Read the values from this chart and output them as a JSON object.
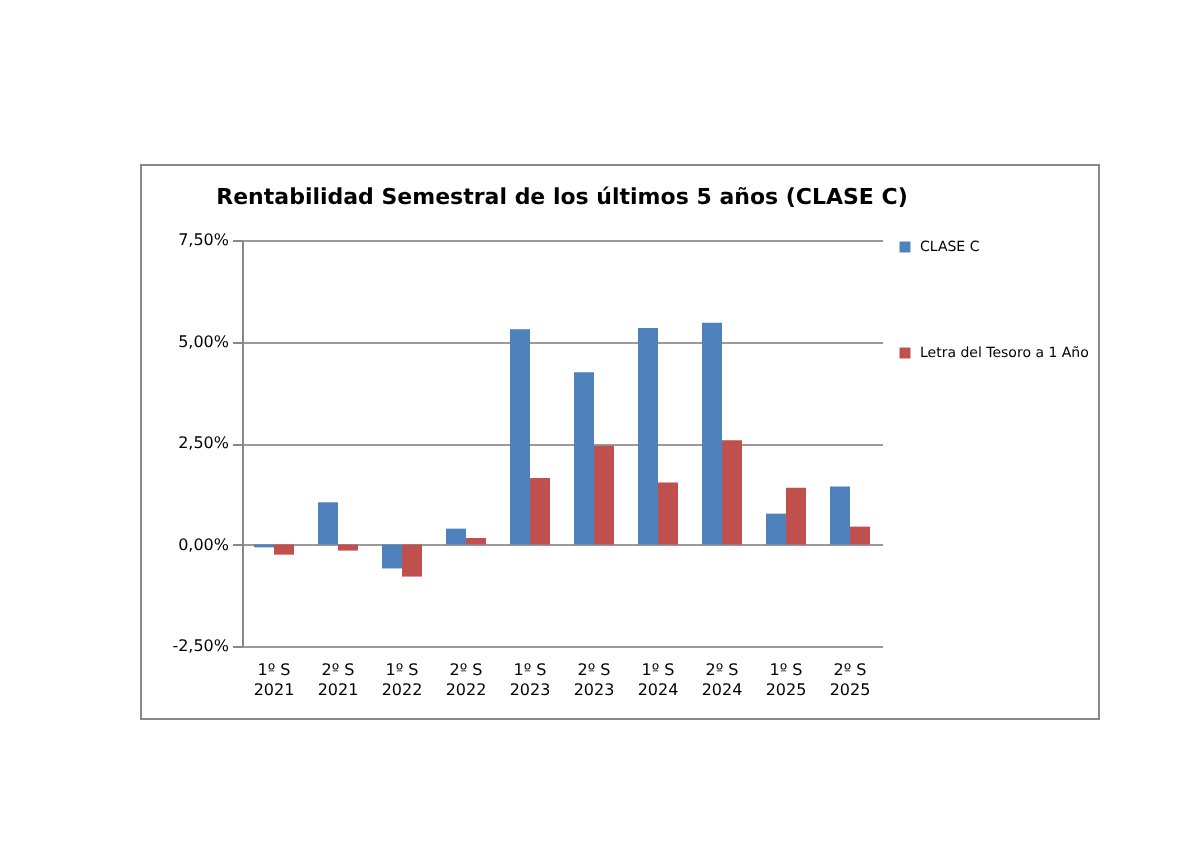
{
  "chart_data": {
    "type": "bar",
    "title": "Rentabilidad Semestral de los últimos 5 años (CLASE C)",
    "categories": [
      "1º S\n2021",
      "2º S\n2021",
      "1º S\n2022",
      "2º S\n2022",
      "1º S\n2023",
      "2º S\n2023",
      "1º S\n2024",
      "2º S\n2024",
      "1º S\n2025",
      "2º S\n2025"
    ],
    "series": [
      {
        "name": "CLASE C",
        "color": "#4f81bd",
        "values": [
          -0.07,
          1.04,
          -0.59,
          0.39,
          5.3,
          4.24,
          5.33,
          5.46,
          0.76,
          1.43
        ]
      },
      {
        "name": "Letra del Tesoro a 1 Año",
        "color": "#c0504d",
        "values": [
          -0.25,
          -0.15,
          -0.79,
          0.16,
          1.64,
          2.43,
          1.53,
          2.57,
          1.4,
          0.44
        ]
      }
    ],
    "ylim": [
      -2.5,
      7.5
    ],
    "yticks": [
      {
        "value": -2.5,
        "label": "-2,50%"
      },
      {
        "value": 0,
        "label": "0,00%"
      },
      {
        "value": 2.5,
        "label": "2,50%"
      },
      {
        "value": 5,
        "label": "5,00%"
      },
      {
        "value": 7.5,
        "label": "7,50%"
      }
    ],
    "grid": "y",
    "legend": "right"
  }
}
